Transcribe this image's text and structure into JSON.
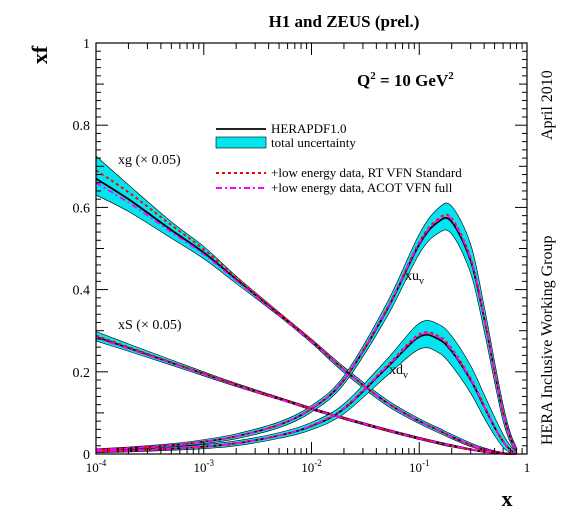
{
  "chart_data": {
    "type": "line",
    "title": "H1 and ZEUS (prel.)",
    "xlabel": "x",
    "ylabel": "xf",
    "xscale": "log",
    "xlim": [
      0.0001,
      1
    ],
    "ylim": [
      0,
      1
    ],
    "x_ticks": [
      {
        "base": "10",
        "exp": "-4"
      },
      {
        "base": "10",
        "exp": "-3"
      },
      {
        "base": "10",
        "exp": "-2"
      },
      {
        "base": "10",
        "exp": "-1"
      },
      {
        "base": "1",
        "exp": ""
      }
    ],
    "y_ticks": [
      "0",
      "0.2",
      "0.4",
      "0.6",
      "0.8",
      "1"
    ],
    "scale_label": {
      "main": "Q",
      "sup": "2",
      "rest": " = 10 GeV",
      "sup2": "2"
    },
    "side_text_1": "HERA Inclusive Working Group",
    "side_text_2": "April 2010",
    "legend_position": "upper-middle",
    "legend": [
      {
        "label": "HERAPDF1.0",
        "style": "solid",
        "color": "#000000"
      },
      {
        "label": "total uncertainty",
        "style": "band",
        "color": "#00e5ee"
      },
      {
        "label": "+low energy data, RT VFN Standard",
        "style": "dashed",
        "color": "#ff0000"
      },
      {
        "label": "+low energy data, ACOT VFN full",
        "style": "dashdot",
        "color": "#ff00ff"
      }
    ],
    "curve_labels": {
      "xg": "xg (× 0.05)",
      "xS": "xS (× 0.05)",
      "xuv": {
        "main": "xu",
        "sub": "v"
      },
      "xdv": {
        "main": "xd",
        "sub": "v"
      }
    },
    "x": [
      0.0001,
      0.0002,
      0.0005,
      0.001,
      0.002,
      0.005,
      0.01,
      0.02,
      0.05,
      0.1,
      0.15,
      0.2,
      0.3,
      0.4,
      0.5,
      0.6,
      0.7,
      0.8
    ],
    "series": [
      {
        "id": "xg",
        "central": [
          0.67,
          0.62,
          0.545,
          0.49,
          0.425,
          0.34,
          0.275,
          0.205,
          0.125,
          0.08,
          0.058,
          0.042,
          0.022,
          0.011,
          0.005,
          0.002,
          0.001,
          0.0
        ],
        "rt": [
          0.69,
          0.637,
          0.557,
          0.498,
          0.43,
          0.343,
          0.277,
          0.206,
          0.125,
          0.08,
          0.058,
          0.042,
          0.022,
          0.011,
          0.005,
          0.002,
          0.001,
          0.0
        ],
        "acot": [
          0.66,
          0.612,
          0.54,
          0.486,
          0.422,
          0.338,
          0.274,
          0.205,
          0.125,
          0.08,
          0.058,
          0.042,
          0.022,
          0.011,
          0.005,
          0.002,
          0.001,
          0.0
        ],
        "upper": [
          0.725,
          0.655,
          0.565,
          0.505,
          0.433,
          0.345,
          0.28,
          0.212,
          0.132,
          0.086,
          0.064,
          0.048,
          0.027,
          0.015,
          0.008,
          0.004,
          0.002,
          0.0
        ],
        "lower": [
          0.63,
          0.59,
          0.525,
          0.475,
          0.415,
          0.335,
          0.27,
          0.198,
          0.118,
          0.074,
          0.052,
          0.037,
          0.018,
          0.008,
          0.003,
          0.001,
          0.0,
          0.0
        ]
      },
      {
        "id": "xS",
        "central": [
          0.285,
          0.258,
          0.222,
          0.195,
          0.168,
          0.135,
          0.11,
          0.087,
          0.058,
          0.038,
          0.027,
          0.02,
          0.011,
          0.006,
          0.003,
          0.001,
          0.0,
          0.0
        ],
        "rt": [
          0.288,
          0.26,
          0.223,
          0.196,
          0.169,
          0.135,
          0.11,
          0.087,
          0.058,
          0.038,
          0.027,
          0.02,
          0.011,
          0.006,
          0.003,
          0.001,
          0.0,
          0.0
        ],
        "acot": [
          0.283,
          0.256,
          0.221,
          0.194,
          0.167,
          0.134,
          0.11,
          0.087,
          0.058,
          0.038,
          0.027,
          0.02,
          0.011,
          0.006,
          0.003,
          0.001,
          0.0,
          0.0
        ],
        "upper": [
          0.298,
          0.268,
          0.229,
          0.2,
          0.172,
          0.138,
          0.113,
          0.09,
          0.061,
          0.041,
          0.03,
          0.023,
          0.013,
          0.007,
          0.004,
          0.002,
          0.001,
          0.0
        ],
        "lower": [
          0.275,
          0.25,
          0.216,
          0.19,
          0.164,
          0.132,
          0.107,
          0.084,
          0.055,
          0.035,
          0.024,
          0.017,
          0.009,
          0.004,
          0.002,
          0.0,
          0.0,
          0.0
        ]
      },
      {
        "id": "xuv",
        "central": [
          0.01,
          0.014,
          0.021,
          0.03,
          0.043,
          0.071,
          0.11,
          0.18,
          0.35,
          0.51,
          0.565,
          0.565,
          0.47,
          0.33,
          0.2,
          0.1,
          0.04,
          0.01
        ],
        "rt": [
          0.01,
          0.014,
          0.021,
          0.03,
          0.043,
          0.071,
          0.111,
          0.182,
          0.353,
          0.515,
          0.572,
          0.573,
          0.476,
          0.334,
          0.202,
          0.101,
          0.04,
          0.01
        ],
        "acot": [
          0.01,
          0.014,
          0.021,
          0.03,
          0.043,
          0.071,
          0.111,
          0.181,
          0.352,
          0.513,
          0.569,
          0.57,
          0.474,
          0.332,
          0.201,
          0.1,
          0.04,
          0.01
        ],
        "upper": [
          0.013,
          0.017,
          0.025,
          0.035,
          0.049,
          0.078,
          0.118,
          0.19,
          0.367,
          0.535,
          0.598,
          0.603,
          0.51,
          0.36,
          0.225,
          0.12,
          0.052,
          0.015
        ],
        "lower": [
          0.007,
          0.011,
          0.017,
          0.025,
          0.037,
          0.064,
          0.102,
          0.17,
          0.333,
          0.487,
          0.537,
          0.535,
          0.44,
          0.3,
          0.175,
          0.08,
          0.028,
          0.005
        ]
      },
      {
        "id": "xdv",
        "central": [
          0.006,
          0.008,
          0.013,
          0.018,
          0.026,
          0.045,
          0.068,
          0.11,
          0.21,
          0.285,
          0.28,
          0.25,
          0.18,
          0.115,
          0.065,
          0.03,
          0.01,
          0.002
        ],
        "rt": [
          0.006,
          0.008,
          0.013,
          0.018,
          0.026,
          0.045,
          0.069,
          0.112,
          0.214,
          0.291,
          0.287,
          0.256,
          0.184,
          0.118,
          0.066,
          0.031,
          0.01,
          0.002
        ],
        "acot": [
          0.006,
          0.008,
          0.013,
          0.018,
          0.026,
          0.045,
          0.069,
          0.111,
          0.212,
          0.288,
          0.284,
          0.253,
          0.182,
          0.116,
          0.065,
          0.03,
          0.01,
          0.002
        ],
        "upper": [
          0.009,
          0.011,
          0.017,
          0.023,
          0.032,
          0.052,
          0.077,
          0.122,
          0.23,
          0.318,
          0.316,
          0.287,
          0.215,
          0.145,
          0.09,
          0.048,
          0.02,
          0.006
        ],
        "lower": [
          0.003,
          0.005,
          0.009,
          0.013,
          0.02,
          0.038,
          0.059,
          0.098,
          0.19,
          0.255,
          0.247,
          0.215,
          0.148,
          0.088,
          0.045,
          0.016,
          0.003,
          0.0
        ]
      }
    ],
    "colors": {
      "band": "#00e5ee",
      "central": "#000000",
      "rt": "#ff0000",
      "acot": "#ff00ff"
    }
  }
}
